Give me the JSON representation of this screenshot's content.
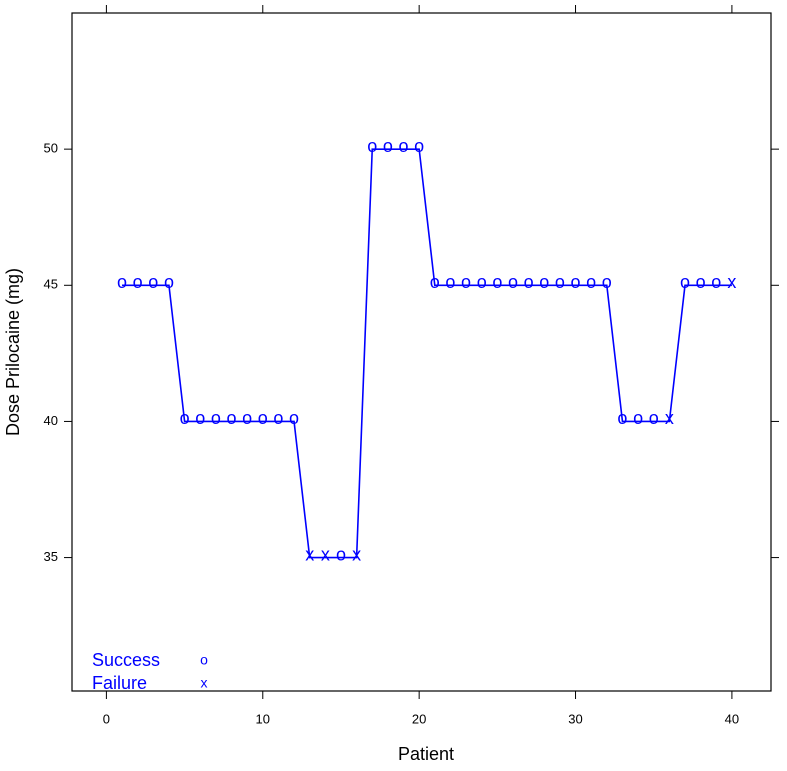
{
  "chart_data": {
    "type": "line",
    "xlabel": "Patient",
    "ylabel": "Dose Prilocaine (mg)",
    "x": [
      1,
      2,
      3,
      4,
      5,
      6,
      7,
      8,
      9,
      10,
      11,
      12,
      13,
      14,
      15,
      16,
      17,
      18,
      19,
      20,
      21,
      22,
      23,
      24,
      25,
      26,
      27,
      28,
      29,
      30,
      31,
      32,
      33,
      34,
      35,
      36,
      37,
      38,
      39,
      40
    ],
    "values": [
      45,
      45,
      45,
      45,
      40,
      40,
      40,
      40,
      40,
      40,
      40,
      40,
      35,
      35,
      35,
      35,
      50,
      50,
      50,
      50,
      45,
      45,
      45,
      45,
      45,
      45,
      45,
      45,
      45,
      45,
      45,
      45,
      40,
      40,
      40,
      40,
      45,
      45,
      45,
      45
    ],
    "symbols": [
      "o",
      "o",
      "o",
      "o",
      "o",
      "o",
      "o",
      "o",
      "o",
      "o",
      "o",
      "o",
      "x",
      "x",
      "o",
      "x",
      "o",
      "o",
      "o",
      "o",
      "o",
      "o",
      "o",
      "o",
      "o",
      "o",
      "o",
      "o",
      "o",
      "o",
      "o",
      "o",
      "o",
      "o",
      "o",
      "x",
      "o",
      "o",
      "o",
      "x"
    ],
    "color": "#0000ff",
    "legend": [
      {
        "name": "Success",
        "symbol": "o"
      },
      {
        "name": "Failure",
        "symbol": "x"
      }
    ],
    "legend_position": "bottom-left",
    "xlim": [
      -2.2,
      42.5
    ],
    "xticks": [
      0,
      10,
      20,
      30,
      40
    ],
    "ylim": [
      30.1,
      55
    ],
    "yticks": [
      35,
      40,
      45,
      50
    ]
  }
}
